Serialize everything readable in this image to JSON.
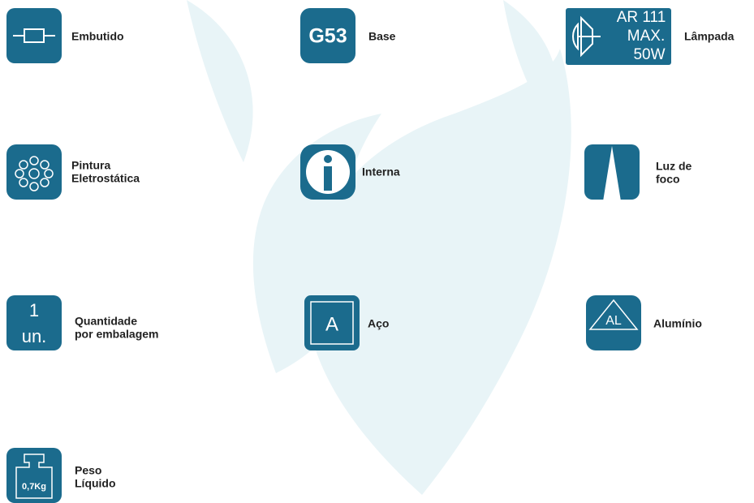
{
  "items": [
    {
      "label": [
        "Embutido"
      ]
    },
    {
      "label": [
        "Base"
      ],
      "icon_text": [
        "G53"
      ]
    },
    {
      "label": [
        "Lâmpada"
      ],
      "icon_text": [
        "AR 111",
        "MAX.",
        "50W"
      ]
    },
    {
      "label": [
        "Pintura",
        "Eletrostática"
      ]
    },
    {
      "label": [
        "Interna"
      ]
    },
    {
      "label": [
        "Luz de",
        "foco"
      ]
    },
    {
      "label": [
        "Quantidade",
        "por embalagem"
      ],
      "icon_text": [
        "1",
        "un."
      ]
    },
    {
      "label": [
        "Aço"
      ],
      "icon_text": [
        "A"
      ]
    },
    {
      "label": [
        "Alumínio"
      ],
      "icon_text": [
        "AL"
      ]
    },
    {
      "label": [
        "Peso",
        "Líquido"
      ],
      "icon_text": [
        "0,7Kg"
      ]
    }
  ]
}
